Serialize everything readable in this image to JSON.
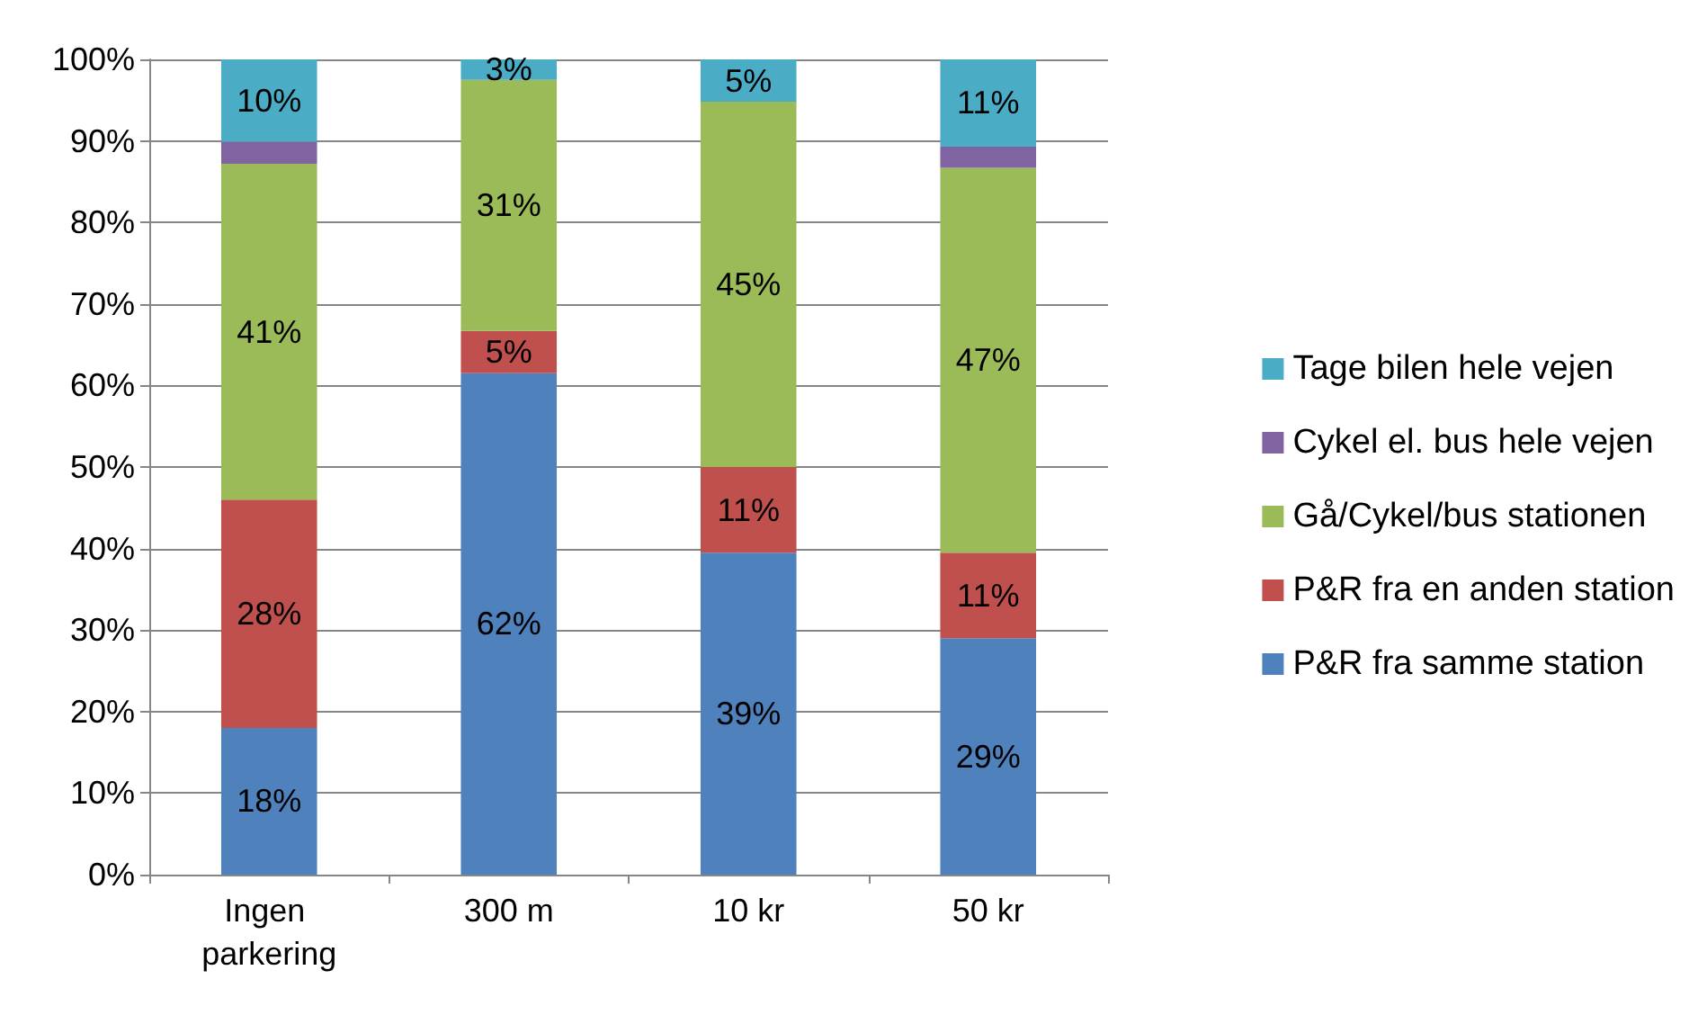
{
  "chart_data": {
    "type": "bar",
    "stacked": true,
    "categories": [
      "Ingen parkering",
      "300 m",
      "10 kr",
      "50 kr"
    ],
    "ylim": [
      0,
      100
    ],
    "yticks": [
      {
        "value": 0,
        "label": "0%"
      },
      {
        "value": 10,
        "label": "10%"
      },
      {
        "value": 20,
        "label": "20%"
      },
      {
        "value": 30,
        "label": "30%"
      },
      {
        "value": 40,
        "label": "40%"
      },
      {
        "value": 50,
        "label": "50%"
      },
      {
        "value": 60,
        "label": "60%"
      },
      {
        "value": 70,
        "label": "70%"
      },
      {
        "value": 80,
        "label": "80%"
      },
      {
        "value": 90,
        "label": "90%"
      },
      {
        "value": 100,
        "label": "100%"
      }
    ],
    "grid": "y",
    "legend": "right",
    "series": [
      {
        "name": "P&R fra samme station",
        "color": "#4f81bd",
        "values": [
          18,
          61.5,
          39.5,
          29
        ],
        "value_labels": [
          "18%",
          "62%",
          "39%",
          "29%"
        ]
      },
      {
        "name": "P&R fra en anden station",
        "color": "#c0504d",
        "values": [
          28,
          5.2,
          10.5,
          10.5
        ],
        "value_labels": [
          "28%",
          "5%",
          "11%",
          "11%"
        ]
      },
      {
        "name": "Gå/Cykel/bus stationen",
        "color": "#9bbb59",
        "values": [
          41.2,
          30.8,
          44.8,
          47.2
        ],
        "value_labels": [
          "41%",
          "31%",
          "45%",
          "47%"
        ]
      },
      {
        "name": "Cykel el. bus hele vejen",
        "color": "#8064a2",
        "values": [
          2.7,
          0,
          0,
          2.6
        ],
        "value_labels": [
          null,
          null,
          null,
          null
        ]
      },
      {
        "name": "Tage bilen hele vejen",
        "color": "#4bacc6",
        "values": [
          10.1,
          2.5,
          5.2,
          10.7
        ],
        "value_labels": [
          "10%",
          "3%",
          "5%",
          "11%"
        ]
      }
    ]
  }
}
